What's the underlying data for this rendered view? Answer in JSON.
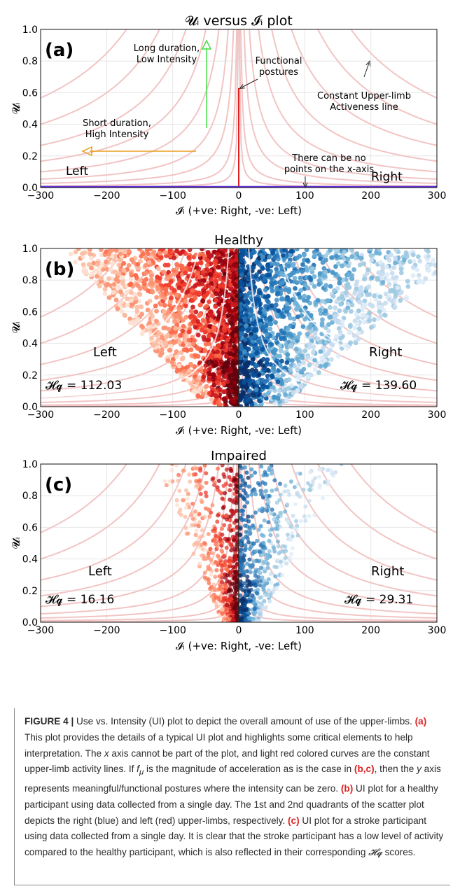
{
  "chart_data": [
    {
      "panel": "(a)",
      "type": "scatter",
      "title": "𝓤ᵢ versus 𝓘ᵢ plot",
      "xlabel": "𝓘ᵢ (+ve: Right, -ve: Left)",
      "ylabel": "𝓤ᵢ",
      "xlim": [
        -300,
        300
      ],
      "ylim": [
        0,
        1.0
      ],
      "xticks": [
        -300,
        -200,
        -100,
        0,
        100,
        200,
        300
      ],
      "yticks": [
        0.0,
        0.2,
        0.4,
        0.6,
        0.8,
        1.0
      ],
      "grid": true,
      "constant_activeness_curves_k": [
        1,
        3,
        8,
        16,
        30,
        50,
        80,
        120,
        170
      ],
      "side_labels": {
        "left": "Left",
        "right": "Right"
      },
      "annotations": {
        "long_duration": "Long duration, Low Intensity",
        "short_duration": "Short duration, High Intensity",
        "functional": "Functional postures",
        "constant_line": "Constant Upper-limb Activeness line",
        "no_points": "There can be no points on the x-axis"
      },
      "colors": {
        "curve": "#f2c4c4",
        "functional_line": "#e02020",
        "x_axis_line": "#5b2bd6",
        "green_arrow": "#44dd44",
        "orange_arrow": "#e8a020"
      }
    },
    {
      "panel": "(b)",
      "type": "scatter",
      "title": "Healthy",
      "xlabel": "𝓘ᵢ (+ve: Right, -ve: Left)",
      "ylabel": "𝓤ᵢ",
      "xlim": [
        -300,
        300
      ],
      "ylim": [
        0,
        1.0
      ],
      "xticks": [
        -300,
        -200,
        -100,
        0,
        100,
        200,
        300
      ],
      "yticks": [
        0.0,
        0.2,
        0.4,
        0.6,
        0.8,
        1.0
      ],
      "grid": true,
      "side_labels": {
        "left": "Left",
        "right": "Right"
      },
      "scores": {
        "left": "𝓗𝓺 = 112.03",
        "right": "𝓗𝓺 = 139.60"
      },
      "series": [
        {
          "side": "left",
          "color": "red",
          "density": 1.0,
          "spread": 85
        },
        {
          "side": "right",
          "color": "blue",
          "density": 1.0,
          "spread": 110
        }
      ]
    },
    {
      "panel": "(c)",
      "type": "scatter",
      "title": "Impaired",
      "xlabel": "𝓘ᵢ (+ve: Right, -ve: Left)",
      "ylabel": "𝓤ᵢ",
      "xlim": [
        -300,
        300
      ],
      "ylim": [
        0,
        1.0
      ],
      "xticks": [
        -300,
        -200,
        -100,
        0,
        100,
        200,
        300
      ],
      "yticks": [
        0.0,
        0.2,
        0.4,
        0.6,
        0.8,
        1.0
      ],
      "grid": true,
      "side_labels": {
        "left": "Left",
        "right": "Right"
      },
      "scores": {
        "left": "𝓗𝓺 = 16.16",
        "right": "𝓗𝓺 = 29.31"
      },
      "series": [
        {
          "side": "left",
          "color": "red",
          "density": 0.35,
          "spread": 40
        },
        {
          "side": "right",
          "color": "blue",
          "density": 0.35,
          "spread": 50
        }
      ]
    }
  ],
  "caption": {
    "figure_label": "FIGURE 4 |",
    "p1": " Use vs. Intensity (UI) plot to depict the overall amount of use of the upper-limbs. ",
    "a_label": "(a)",
    "p2": " This plot provides the details of a typical UI plot and highlights some critical elements to help interpretation. The ",
    "x_ital": "x",
    "p3": " axis cannot be part of the plot, and light red colored curves are the constant upper-limb activity lines. If ",
    "f_mu": "f",
    "f_mu_sub": "μ",
    "p4": " is the magnitude of acceleration as is the case in ",
    "bc_label": "(b,c)",
    "p5": ", then the ",
    "y_ital": "y",
    "p6": " axis represents meaningful/functional postures where the intensity can be zero. ",
    "b_label": "(b)",
    "p7": " UI plot for a healthy participant using data collected from a single day. The 1st and 2nd quadrants of the scatter plot depicts the right (blue) and left (red) upper-limbs, respectively. ",
    "c_label": "(c)",
    "p8": " UI plot for a stroke participant using data collected from a single day. It is clear that the stroke participant has a low level of activity compared to the healthy participant, which is also reflected in their corresponding ",
    "hq": "𝓗𝓺",
    "p9": " scores."
  }
}
